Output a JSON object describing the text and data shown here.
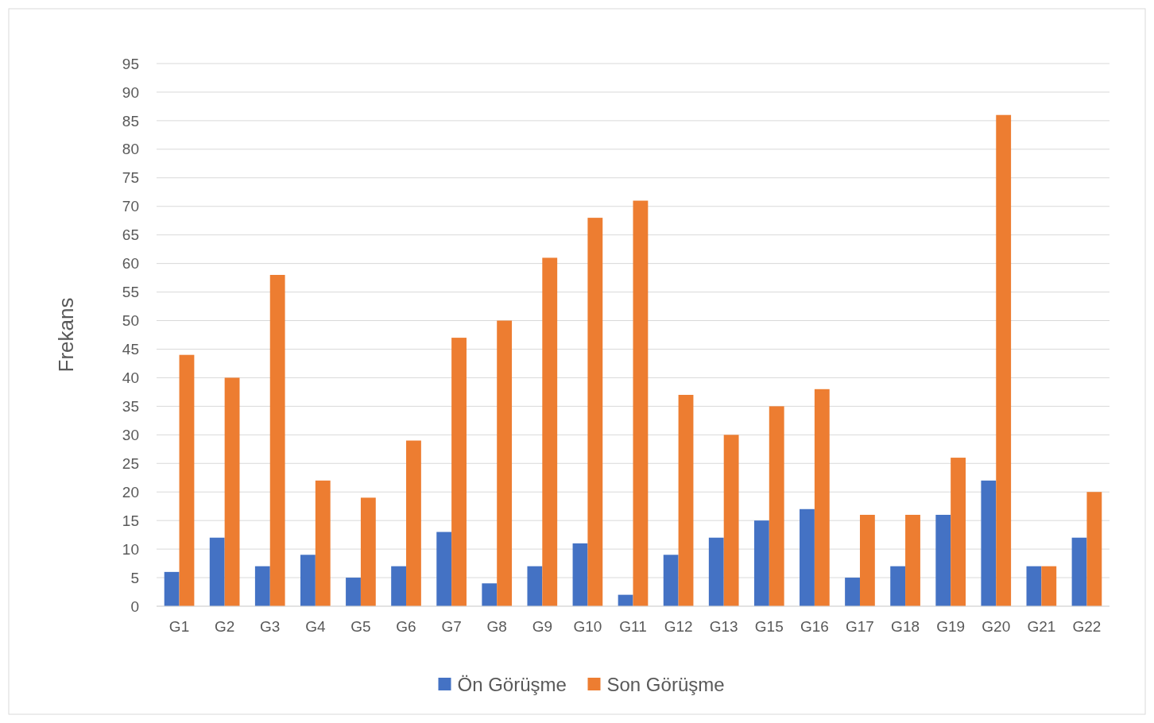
{
  "chart_data": {
    "type": "bar",
    "ylabel": "Frekans",
    "categories": [
      "G1",
      "G2",
      "G3",
      "G4",
      "G5",
      "G6",
      "G7",
      "G8",
      "G9",
      "G10",
      "G11",
      "G12",
      "G13",
      "G15",
      "G16",
      "G17",
      "G18",
      "G19",
      "G20",
      "G21",
      "G22"
    ],
    "series": [
      {
        "name": "Ön Görüşme",
        "color": "#4472c4",
        "values": [
          6,
          12,
          7,
          9,
          5,
          7,
          13,
          4,
          7,
          11,
          2,
          9,
          12,
          15,
          17,
          5,
          7,
          16,
          22,
          7,
          12
        ]
      },
      {
        "name": "Son Görüşme",
        "color": "#ed7d31",
        "values": [
          44,
          40,
          58,
          22,
          19,
          29,
          47,
          50,
          61,
          68,
          71,
          37,
          30,
          35,
          38,
          16,
          16,
          26,
          86,
          7,
          20
        ]
      }
    ],
    "ylim": [
      0,
      95
    ],
    "yticks": [
      0,
      5,
      10,
      15,
      20,
      25,
      30,
      35,
      40,
      45,
      50,
      55,
      60,
      65,
      70,
      75,
      80,
      85,
      90,
      95
    ],
    "grid": "y",
    "legend": "bottom"
  }
}
